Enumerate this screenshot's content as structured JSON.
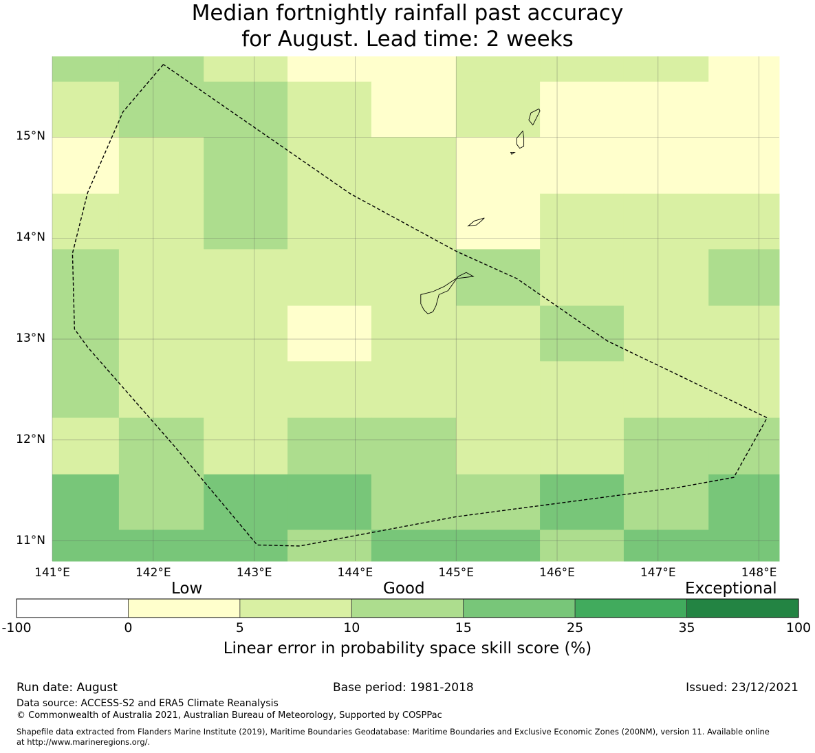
{
  "title_line1": "Median fortnightly rainfall past accuracy",
  "title_line2": "for August. Lead time: 2 weeks",
  "map": {
    "lon_range": [
      141.0,
      148.2
    ],
    "lat_range": [
      10.8,
      15.8
    ],
    "lon_ticks": [
      "141°E",
      "142°E",
      "143°E",
      "144°E",
      "145°E",
      "146°E",
      "147°E",
      "148°E"
    ],
    "lat_ticks": [
      "11°N",
      "12°N",
      "13°N",
      "14°N",
      "15°N"
    ],
    "lon_tick_values": [
      141,
      142,
      143,
      144,
      145,
      146,
      147,
      148
    ],
    "lat_tick_values": [
      11,
      12,
      13,
      14,
      15
    ],
    "grid_lon_edges": [
      141.0,
      141.66,
      142.5,
      143.33,
      144.16,
      145.0,
      145.83,
      146.66,
      147.5,
      148.2
    ],
    "grid_lat_edges": [
      15.8,
      15.55,
      15.0,
      14.44,
      13.89,
      13.33,
      12.78,
      12.22,
      11.66,
      11.11,
      10.8
    ],
    "cell_classes": [
      [
        2,
        2,
        1,
        0,
        0,
        1,
        1,
        1,
        0
      ],
      [
        1,
        2,
        2,
        1,
        0,
        1,
        0,
        0,
        0
      ],
      [
        0,
        1,
        2,
        1,
        1,
        0,
        0,
        0,
        0
      ],
      [
        1,
        1,
        2,
        1,
        1,
        0,
        1,
        1,
        1
      ],
      [
        2,
        1,
        1,
        1,
        1,
        2,
        1,
        1,
        2
      ],
      [
        2,
        1,
        1,
        0,
        1,
        1,
        2,
        1,
        1
      ],
      [
        2,
        1,
        1,
        1,
        1,
        1,
        1,
        1,
        1
      ],
      [
        1,
        2,
        1,
        2,
        2,
        1,
        1,
        2,
        2
      ],
      [
        3,
        2,
        3,
        3,
        2,
        2,
        3,
        2,
        3
      ],
      [
        3,
        3,
        3,
        2,
        3,
        3,
        2,
        3,
        3
      ]
    ],
    "eez_boundary": [
      [
        142.1,
        15.72
      ],
      [
        141.7,
        15.25
      ],
      [
        141.35,
        14.45
      ],
      [
        141.2,
        13.85
      ],
      [
        141.22,
        13.1
      ],
      [
        141.35,
        12.92
      ],
      [
        142.2,
        11.95
      ],
      [
        143.03,
        10.96
      ],
      [
        143.45,
        10.95
      ],
      [
        145.0,
        11.24
      ],
      [
        147.2,
        11.53
      ],
      [
        147.75,
        11.63
      ],
      [
        148.08,
        12.22
      ],
      [
        146.5,
        12.98
      ],
      [
        145.6,
        13.6
      ],
      [
        145.0,
        13.87
      ],
      [
        143.95,
        14.44
      ],
      [
        142.1,
        15.72
      ]
    ],
    "islands": [
      [
        [
          145.17,
          13.62
        ],
        [
          145.0,
          13.6
        ],
        [
          144.88,
          13.52
        ],
        [
          144.77,
          13.47
        ],
        [
          144.65,
          13.44
        ],
        [
          144.65,
          13.35
        ],
        [
          144.68,
          13.29
        ],
        [
          144.72,
          13.25
        ],
        [
          144.77,
          13.27
        ],
        [
          144.8,
          13.33
        ],
        [
          144.83,
          13.44
        ],
        [
          144.92,
          13.48
        ],
        [
          145.02,
          13.62
        ],
        [
          145.1,
          13.66
        ],
        [
          145.17,
          13.62
        ]
      ],
      [
        [
          145.28,
          14.2
        ],
        [
          145.18,
          14.17
        ],
        [
          145.12,
          14.12
        ],
        [
          145.2,
          14.13
        ],
        [
          145.25,
          14.17
        ],
        [
          145.28,
          14.2
        ]
      ],
      [
        [
          145.66,
          15.06
        ],
        [
          145.6,
          14.99
        ],
        [
          145.6,
          14.93
        ],
        [
          145.63,
          14.89
        ],
        [
          145.67,
          14.91
        ],
        [
          145.67,
          15.0
        ],
        [
          145.66,
          15.06
        ]
      ],
      [
        [
          145.82,
          15.28
        ],
        [
          145.74,
          15.24
        ],
        [
          145.72,
          15.17
        ],
        [
          145.76,
          15.12
        ],
        [
          145.8,
          15.2
        ],
        [
          145.83,
          15.26
        ],
        [
          145.82,
          15.28
        ]
      ],
      [
        [
          145.55,
          14.83
        ],
        [
          145.58,
          14.85
        ],
        [
          145.54,
          14.85
        ],
        [
          145.55,
          14.83
        ]
      ]
    ]
  },
  "colorbar": {
    "category_labels": [
      "Low",
      "Good",
      "Exceptional"
    ],
    "tick_labels": [
      "-100",
      "0",
      "5",
      "10",
      "15",
      "25",
      "35",
      "100"
    ],
    "colors": [
      "#ffffff",
      "#ffffcc",
      "#d9f0a3",
      "#addd8e",
      "#78c679",
      "#41ab5d",
      "#238443"
    ],
    "axis_label": "Linear error in probability space skill score (%)"
  },
  "footer": {
    "run_date": "Run date: August",
    "base_period": "Base period: 1981-2018",
    "issued": "Issued: 23/12/2021",
    "data_source": "Data source: ACCESS-S2 and ERA5 Climate Reanalysis",
    "copyright": "© Commonwealth of Australia 2021, Australian Bureau of Meteorology, Supported by COSPPac",
    "shapefile_line1": "Shapefile data extracted from Flanders Marine Institute (2019), Maritime Boundaries Geodatabase: Maritime Boundaries and Exclusive Economic Zones (200NM), version 11. Available online",
    "shapefile_line2": "at http://www.marineregions.org/."
  }
}
